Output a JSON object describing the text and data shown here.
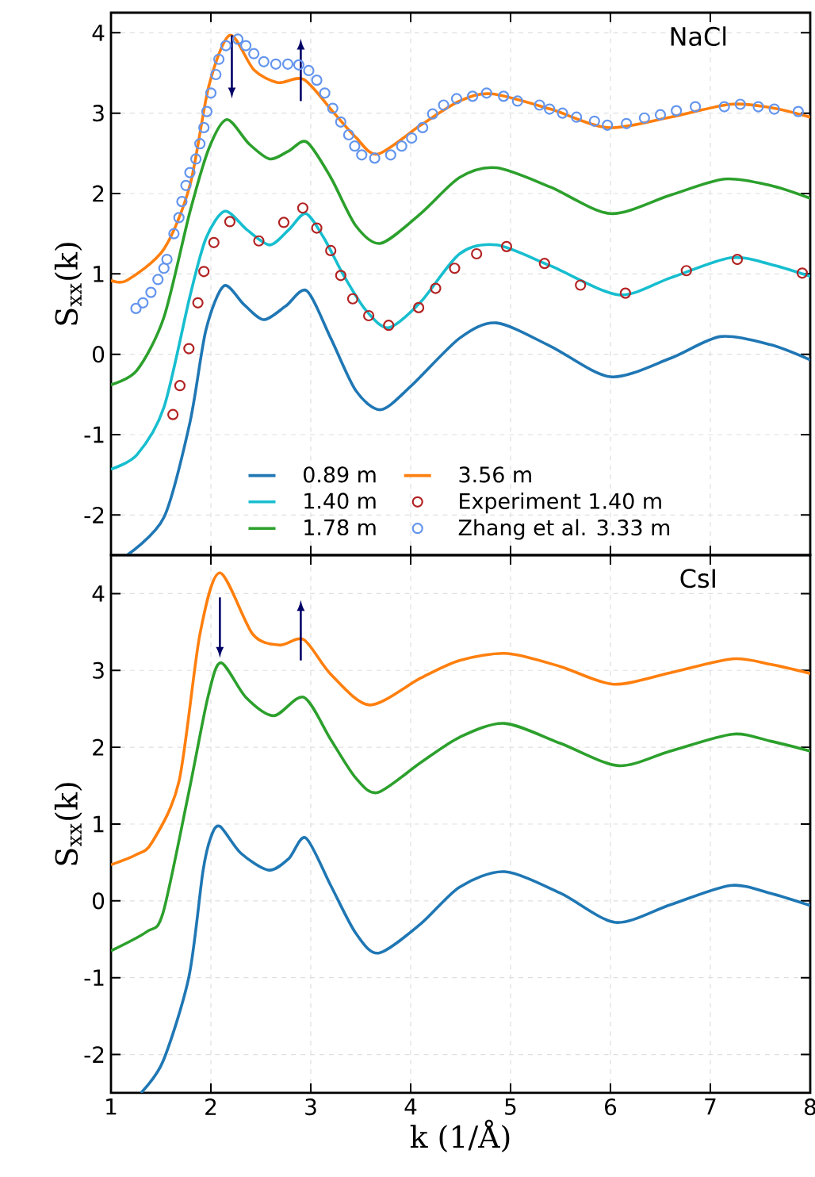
{
  "chart_data": [
    {
      "type": "line",
      "ylabel": "S$_{xx}$(k)",
      "annotations": [
        "NaCl"
      ],
      "xlim": [
        1,
        8
      ],
      "ylim": [
        -2.5,
        4.25
      ],
      "xticks": [
        1,
        2,
        3,
        4,
        5,
        6,
        7,
        8
      ],
      "yticks": [
        -2,
        -1,
        0,
        1,
        2,
        3,
        4
      ],
      "tick_labels": "y",
      "grid": true,
      "legend": "bottom",
      "series": [
        {
          "name": "0.89 m",
          "color": "#1f77b4",
          "x": [
            1.16,
            1.53,
            1.79,
            1.95,
            2.13,
            2.33,
            2.53,
            2.75,
            2.96,
            3.2,
            3.45,
            3.7,
            4.0,
            4.49,
            4.86,
            5.4,
            6.0,
            6.6,
            7.1,
            7.6,
            8.0
          ],
          "values": [
            -2.5,
            -2.03,
            -0.85,
            0.3,
            0.85,
            0.62,
            0.43,
            0.6,
            0.79,
            0.2,
            -0.45,
            -0.69,
            -0.4,
            0.2,
            0.39,
            0.1,
            -0.28,
            -0.05,
            0.22,
            0.12,
            -0.07
          ]
        },
        {
          "name": "1.40 m",
          "color": "#17becf",
          "x": [
            1.0,
            1.26,
            1.53,
            1.79,
            1.95,
            2.14,
            2.36,
            2.59,
            2.78,
            2.95,
            3.13,
            3.33,
            3.55,
            3.78,
            4.1,
            4.49,
            4.86,
            5.4,
            6.08,
            6.6,
            7.2,
            7.6,
            8.0
          ],
          "values": [
            -1.43,
            -1.25,
            -0.66,
            0.72,
            1.44,
            1.78,
            1.55,
            1.36,
            1.55,
            1.75,
            1.45,
            0.98,
            0.55,
            0.33,
            0.65,
            1.25,
            1.36,
            1.1,
            0.74,
            0.95,
            1.2,
            1.12,
            0.97
          ]
        },
        {
          "name": "1.78 m",
          "color": "#2ca02c",
          "x": [
            1.0,
            1.26,
            1.53,
            1.79,
            1.98,
            2.16,
            2.38,
            2.59,
            2.78,
            2.96,
            3.2,
            3.45,
            3.7,
            4.1,
            4.49,
            4.86,
            5.4,
            6.0,
            6.6,
            7.14,
            7.6,
            8.0
          ],
          "values": [
            -0.38,
            -0.2,
            0.46,
            1.77,
            2.56,
            2.92,
            2.62,
            2.43,
            2.53,
            2.64,
            2.2,
            1.6,
            1.38,
            1.75,
            2.2,
            2.32,
            2.08,
            1.75,
            1.98,
            2.18,
            2.1,
            1.94
          ]
        },
        {
          "name": "3.56 m",
          "color": "#ff7f0e",
          "x": [
            1.0,
            1.16,
            1.53,
            1.79,
            1.98,
            2.19,
            2.43,
            2.67,
            2.93,
            3.22,
            3.45,
            3.67,
            4.1,
            4.49,
            4.81,
            5.4,
            5.97,
            6.6,
            7.2,
            7.6,
            8.0
          ],
          "values": [
            0.92,
            0.92,
            1.31,
            2.1,
            3.34,
            3.97,
            3.54,
            3.38,
            3.42,
            3.02,
            2.7,
            2.49,
            2.85,
            3.15,
            3.24,
            3.05,
            2.82,
            2.95,
            3.11,
            3.07,
            2.95
          ]
        },
        {
          "name": "Experiment 1.40 m",
          "type": "scatter",
          "marker": "circle",
          "color": "#b22222",
          "x": [
            1.62,
            1.69,
            1.78,
            1.87,
            1.93,
            2.03,
            2.19,
            2.48,
            2.73,
            2.92,
            3.06,
            3.2,
            3.3,
            3.42,
            3.58,
            3.78,
            4.08,
            4.25,
            4.44,
            4.66,
            4.96,
            5.34,
            5.7,
            6.15,
            6.76,
            7.27,
            7.92
          ],
          "values": [
            -0.75,
            -0.39,
            0.07,
            0.64,
            1.03,
            1.39,
            1.65,
            1.41,
            1.64,
            1.82,
            1.57,
            1.29,
            0.98,
            0.69,
            0.48,
            0.36,
            0.58,
            0.82,
            1.07,
            1.25,
            1.34,
            1.13,
            0.86,
            0.76,
            1.04,
            1.18,
            1.01
          ]
        },
        {
          "name": "Zhang et al. 3.33 m",
          "type": "scatter",
          "marker": "circle",
          "color": "#6495ed",
          "x": [
            1.25,
            1.32,
            1.4,
            1.47,
            1.53,
            1.56,
            1.63,
            1.68,
            1.71,
            1.75,
            1.79,
            1.85,
            1.89,
            1.93,
            1.96,
            2.0,
            2.05,
            2.08,
            2.15,
            2.27,
            2.35,
            2.43,
            2.53,
            2.65,
            2.77,
            2.88,
            2.98,
            3.06,
            3.14,
            3.22,
            3.3,
            3.38,
            3.44,
            3.51,
            3.64,
            3.8,
            3.91,
            4.01,
            4.12,
            4.22,
            4.33,
            4.46,
            4.62,
            4.76,
            4.93,
            5.07,
            5.29,
            5.39,
            5.52,
            5.66,
            5.84,
            5.97,
            6.16,
            6.34,
            6.5,
            6.66,
            6.85,
            7.14,
            7.3,
            7.48,
            7.64,
            7.88
          ],
          "values": [
            0.57,
            0.64,
            0.77,
            0.93,
            1.07,
            1.18,
            1.5,
            1.7,
            1.9,
            2.1,
            2.26,
            2.43,
            2.62,
            2.82,
            3.02,
            3.25,
            3.48,
            3.67,
            3.84,
            3.92,
            3.84,
            3.74,
            3.64,
            3.61,
            3.61,
            3.6,
            3.53,
            3.41,
            3.25,
            3.06,
            2.89,
            2.73,
            2.59,
            2.48,
            2.44,
            2.48,
            2.59,
            2.69,
            2.82,
            2.99,
            3.1,
            3.18,
            3.21,
            3.25,
            3.21,
            3.15,
            3.1,
            3.05,
            3.0,
            2.95,
            2.9,
            2.85,
            2.87,
            2.94,
            2.98,
            3.03,
            3.08,
            3.08,
            3.11,
            3.08,
            3.05,
            3.02
          ]
        }
      ]
    },
    {
      "type": "line",
      "xlabel": "k (1/Å)",
      "ylabel": "S$_{xx}$(k)",
      "annotations": [
        "CsI"
      ],
      "xlim": [
        1,
        8
      ],
      "ylim": [
        -2.5,
        4.5
      ],
      "xticks": [
        1,
        2,
        3,
        4,
        5,
        6,
        7,
        8
      ],
      "yticks": [
        -2,
        -1,
        0,
        1,
        2,
        3,
        4
      ],
      "grid": true,
      "series": [
        {
          "color": "#1f77b4",
          "x": [
            1.3,
            1.52,
            1.78,
            1.92,
            2.0,
            2.09,
            2.3,
            2.58,
            2.78,
            2.95,
            3.2,
            3.45,
            3.68,
            4.1,
            4.49,
            4.94,
            5.5,
            6.05,
            6.6,
            7.2,
            7.6,
            8.0
          ],
          "values": [
            -2.5,
            -2.09,
            -0.99,
            0.38,
            0.83,
            0.97,
            0.62,
            0.4,
            0.55,
            0.82,
            0.2,
            -0.42,
            -0.68,
            -0.3,
            0.18,
            0.38,
            0.1,
            -0.28,
            -0.05,
            0.2,
            0.1,
            -0.06
          ]
        },
        {
          "color": "#2ca02c",
          "x": [
            1.0,
            1.36,
            1.52,
            1.78,
            1.97,
            2.1,
            2.35,
            2.63,
            2.93,
            3.2,
            3.45,
            3.67,
            4.1,
            4.49,
            4.94,
            5.5,
            6.08,
            6.6,
            7.22,
            7.6,
            8.0
          ],
          "values": [
            -0.65,
            -0.4,
            -0.16,
            1.42,
            2.65,
            3.1,
            2.65,
            2.41,
            2.65,
            2.1,
            1.6,
            1.41,
            1.8,
            2.13,
            2.31,
            2.05,
            1.76,
            1.95,
            2.17,
            2.08,
            1.95
          ]
        },
        {
          "color": "#ff7f0e",
          "x": [
            1.0,
            1.25,
            1.41,
            1.68,
            1.89,
            2.09,
            2.42,
            2.69,
            2.93,
            3.2,
            3.59,
            4.1,
            4.49,
            4.97,
            5.5,
            6.03,
            6.6,
            7.22,
            7.6,
            8.0
          ],
          "values": [
            0.47,
            0.6,
            0.76,
            1.55,
            3.47,
            4.27,
            3.47,
            3.33,
            3.4,
            2.95,
            2.55,
            2.9,
            3.13,
            3.22,
            3.05,
            2.82,
            2.97,
            3.15,
            3.08,
            2.96
          ]
        }
      ]
    }
  ]
}
